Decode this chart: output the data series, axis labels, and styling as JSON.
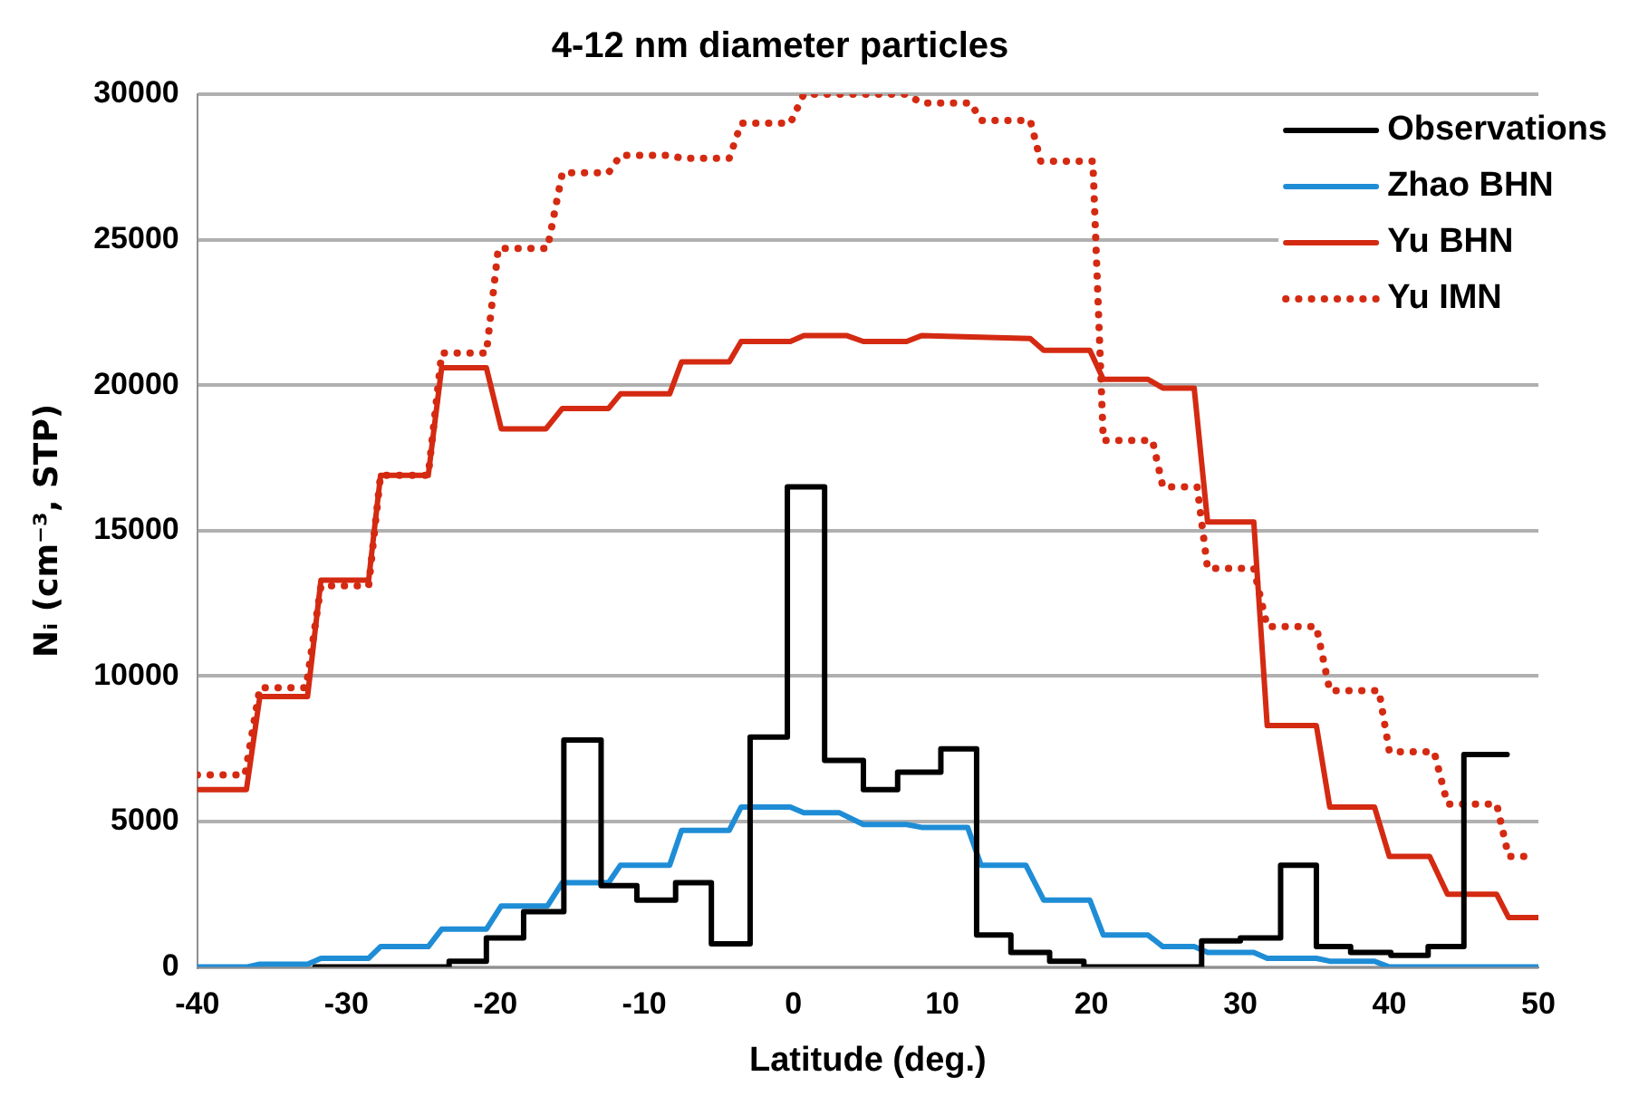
{
  "chart_data": {
    "type": "line",
    "title": "4-12 nm diameter particles",
    "xlabel": "Latitude (deg.)",
    "ylabel": "Nᵢ (cm⁻³, STP)",
    "xlim": [
      -40,
      50
    ],
    "xticks": [
      -40,
      -30,
      -20,
      -10,
      0,
      10,
      20,
      30,
      40,
      50
    ],
    "ylim": [
      0,
      30000
    ],
    "yticks": [
      0,
      5000,
      10000,
      15000,
      20000,
      25000,
      30000
    ],
    "grid": "y",
    "legend": "top right",
    "series": [
      {
        "name": "Observations",
        "color": "#000000",
        "line_style": "solid",
        "x": [
          -32.1,
          -23.1,
          -23.1,
          -20.6,
          -20.6,
          -18.1,
          -18.1,
          -15.4,
          -15.4,
          -12.9,
          -12.9,
          -10.5,
          -10.5,
          -7.9,
          -7.9,
          -5.5,
          -5.5,
          -2.9,
          -2.9,
          -0.4,
          -0.4,
          2.1,
          2.1,
          4.7,
          4.7,
          7.0,
          7.0,
          9.9,
          9.9,
          12.3,
          12.3,
          14.6,
          14.6,
          17.2,
          17.2,
          19.5,
          19.5,
          27.4,
          27.4,
          30.0,
          30.0,
          32.7,
          32.7,
          35.1,
          35.1,
          37.4,
          37.4,
          40.1,
          40.1,
          42.6,
          42.6,
          45.0,
          45.0,
          47.9
        ],
        "values": [
          0,
          0,
          200,
          200,
          1000,
          1000,
          1900,
          1900,
          7800,
          7800,
          2800,
          2800,
          2300,
          2300,
          2900,
          2900,
          800,
          800,
          7900,
          7900,
          16500,
          16500,
          7100,
          7100,
          6100,
          6100,
          6700,
          6700,
          7500,
          7500,
          1100,
          1100,
          500,
          500,
          200,
          200,
          0,
          0,
          900,
          900,
          1000,
          1000,
          3500,
          3500,
          700,
          700,
          500,
          500,
          400,
          400,
          700,
          700,
          7300,
          7300
        ]
      },
      {
        "name": "Zhao BHN",
        "color": "#1f8dd6",
        "line_style": "solid",
        "x": [
          -40,
          -36.7,
          -35.8,
          -32.6,
          -31.7,
          -28.5,
          -27.7,
          -24.5,
          -23.6,
          -20.6,
          -19.6,
          -16.5,
          -15.5,
          -12.4,
          -11.6,
          -8.3,
          -7.5,
          -4.3,
          -3.5,
          -0.2,
          0.7,
          3.1,
          4.7,
          7.6,
          8.6,
          11.7,
          12.6,
          15.6,
          16.8,
          19.9,
          20.8,
          23.8,
          24.8,
          26.9,
          27.8,
          30.9,
          31.8,
          35.1,
          36.0,
          39.0,
          40.0,
          50
        ],
        "values": [
          0,
          0,
          100,
          100,
          300,
          300,
          700,
          700,
          1300,
          1300,
          2100,
          2100,
          2900,
          2900,
          3500,
          3500,
          4700,
          4700,
          5500,
          5500,
          5300,
          5300,
          4900,
          4900,
          4800,
          4800,
          3500,
          3500,
          2300,
          2300,
          1100,
          1100,
          700,
          700,
          500,
          500,
          300,
          300,
          200,
          200,
          0,
          0
        ]
      },
      {
        "name": "Yu BHN",
        "color": "#d42a12",
        "line_style": "solid",
        "x": [
          -40,
          -36.7,
          -35.8,
          -32.6,
          -31.7,
          -28.5,
          -27.7,
          -24.5,
          -23.6,
          -20.6,
          -19.6,
          -16.6,
          -15.5,
          -12.4,
          -11.6,
          -8.3,
          -7.5,
          -4.3,
          -3.5,
          -0.2,
          0.7,
          3.6,
          4.7,
          7.6,
          8.6,
          15.9,
          16.8,
          19.9,
          20.8,
          23.8,
          24.8,
          26.9,
          27.8,
          30.9,
          31.8,
          35.1,
          36.0,
          39.0,
          40.0,
          42.7,
          43.9,
          47.2,
          48.0,
          50
        ],
        "values": [
          6100,
          6100,
          9300,
          9300,
          13300,
          13300,
          16900,
          16900,
          20600,
          20600,
          18500,
          18500,
          19200,
          19200,
          19700,
          19700,
          20800,
          20800,
          21500,
          21500,
          21700,
          21700,
          21500,
          21500,
          21700,
          21600,
          21200,
          21200,
          20200,
          20200,
          19900,
          19900,
          15300,
          15300,
          8300,
          8300,
          5500,
          5500,
          3800,
          3800,
          2500,
          2500,
          1700,
          1700
        ]
      },
      {
        "name": "Yu IMN",
        "color": "#d42a12",
        "line_style": "dotted",
        "x": [
          -40,
          -36.8,
          -35.8,
          -32.7,
          -31.7,
          -28.5,
          -27.7,
          -24.5,
          -23.6,
          -20.6,
          -19.8,
          -16.5,
          -15.5,
          -12.4,
          -11.6,
          -8.3,
          -7.5,
          -4.3,
          -3.5,
          -0.2,
          0.7,
          7.6,
          8.6,
          11.9,
          12.6,
          15.9,
          16.6,
          20.1,
          20.8,
          24.1,
          24.8,
          27.1,
          27.8,
          30.9,
          31.8,
          35.1,
          36.0,
          39.3,
          40.0,
          43.0,
          43.9,
          47.2,
          48.0,
          49.3
        ],
        "values": [
          6600,
          6600,
          9600,
          9600,
          13100,
          13100,
          16900,
          16900,
          21100,
          21100,
          24700,
          24700,
          27300,
          27300,
          27900,
          27900,
          27800,
          27800,
          29000,
          29000,
          30000,
          30000,
          29700,
          29700,
          29100,
          29100,
          27700,
          27700,
          18100,
          18100,
          16500,
          16500,
          13700,
          13700,
          11700,
          11700,
          9500,
          9500,
          7400,
          7400,
          5600,
          5600,
          3800,
          3800
        ]
      }
    ]
  }
}
